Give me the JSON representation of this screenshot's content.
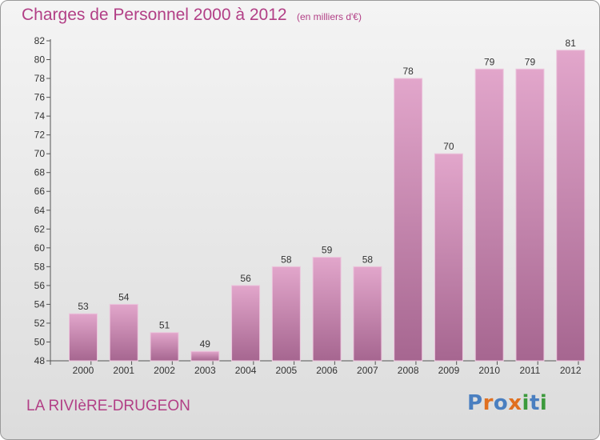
{
  "title": "Charges de Personnel 2000 à 2012",
  "subtitle": "(en milliers d'€)",
  "location": "LA RIVIèRE-DRUGEON",
  "logo": {
    "text": "Proxiti",
    "letter_colors": [
      "#4a7fc0",
      "#e07020",
      "#4a7fc0",
      "#e07020",
      "#3c9a3c",
      "#4a7fc0",
      "#3c9a3c"
    ]
  },
  "colors": {
    "bar_light": "#e2a6cb",
    "bar_dark": "#a66690",
    "text_accent": "#b23f86"
  },
  "chart_data": {
    "type": "bar",
    "categories": [
      "2000",
      "2001",
      "2002",
      "2003",
      "2004",
      "2005",
      "2006",
      "2007",
      "2008",
      "2009",
      "2010",
      "2011",
      "2012"
    ],
    "values": [
      53,
      54,
      51,
      49,
      56,
      58,
      59,
      58,
      78,
      70,
      79,
      79,
      81
    ],
    "ylim": [
      48,
      82
    ],
    "yticks": [
      48,
      50,
      52,
      54,
      56,
      58,
      60,
      62,
      64,
      66,
      68,
      70,
      72,
      74,
      76,
      78,
      80,
      82
    ],
    "grid": false
  }
}
